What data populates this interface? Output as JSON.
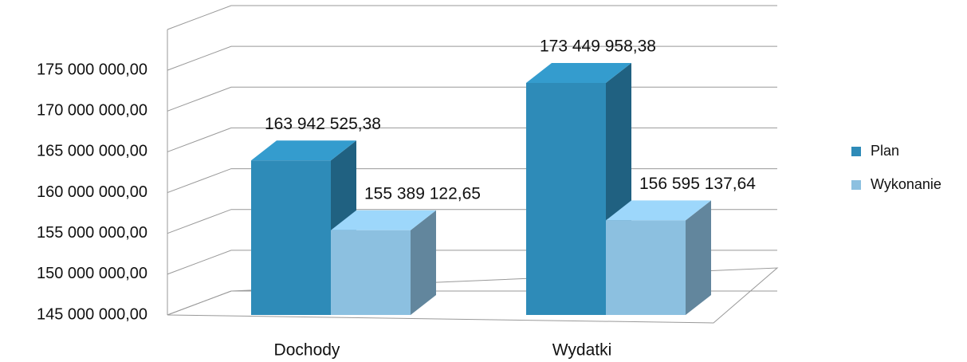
{
  "chart_data": {
    "type": "bar3d",
    "categories": [
      "Dochody",
      "Wydatki"
    ],
    "series": [
      {
        "name": "Plan",
        "color": "#2e8bb8",
        "values": [
          163942525.38,
          173449958.38
        ],
        "value_labels": [
          "163 942 525,38",
          "173 449 958,38"
        ]
      },
      {
        "name": "Wykonanie",
        "color": "#8cc0e0",
        "values": [
          155389122.65,
          156595137.64
        ],
        "value_labels": [
          "155 389 122,65",
          "156 595 137,64"
        ]
      }
    ],
    "ylim": [
      145000000,
      180000000
    ],
    "yticks": [
      {
        "value": 145000000,
        "label": "145 000 000,00"
      },
      {
        "value": 150000000,
        "label": "150 000 000,00"
      },
      {
        "value": 155000000,
        "label": "155 000 000,00"
      },
      {
        "value": 160000000,
        "label": "160 000 000,00"
      },
      {
        "value": 165000000,
        "label": "165 000 000,00"
      },
      {
        "value": 170000000,
        "label": "170 000 000,00"
      },
      {
        "value": 175000000,
        "label": "175 000 000,00"
      }
    ],
    "grid": true,
    "legend": "right"
  }
}
